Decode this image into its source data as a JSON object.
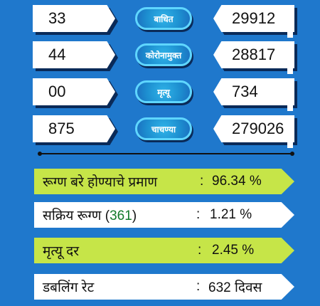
{
  "rows": [
    {
      "left": "33",
      "label": "बाधित",
      "right": "29912"
    },
    {
      "left": "44",
      "label": "कोरोनामुक्त",
      "right": "28817"
    },
    {
      "left": "00",
      "label": "मृत्यू",
      "right": "734"
    },
    {
      "left": "875",
      "label": "चाचण्या",
      "right": "279026"
    }
  ],
  "stats": {
    "recovery": {
      "label": "रूग्ण बरे होण्याचे प्रमाण",
      "colon": ":",
      "value": "96.34 %"
    },
    "active": {
      "label_pre": "सक्रिय रूग्ण (",
      "count": "361",
      "label_post": ")",
      "colon": ":",
      "value": "1.21 %"
    },
    "death": {
      "label": "मृत्यू दर",
      "colon": ":",
      "value": "2.45 %"
    },
    "doubling": {
      "label": "डबलिंग रेट",
      "colon": ":",
      "value": "632 दिवस"
    }
  },
  "colors": {
    "background": "#1f78cc",
    "highlight": "#c6e548",
    "count": "#127a2a"
  }
}
